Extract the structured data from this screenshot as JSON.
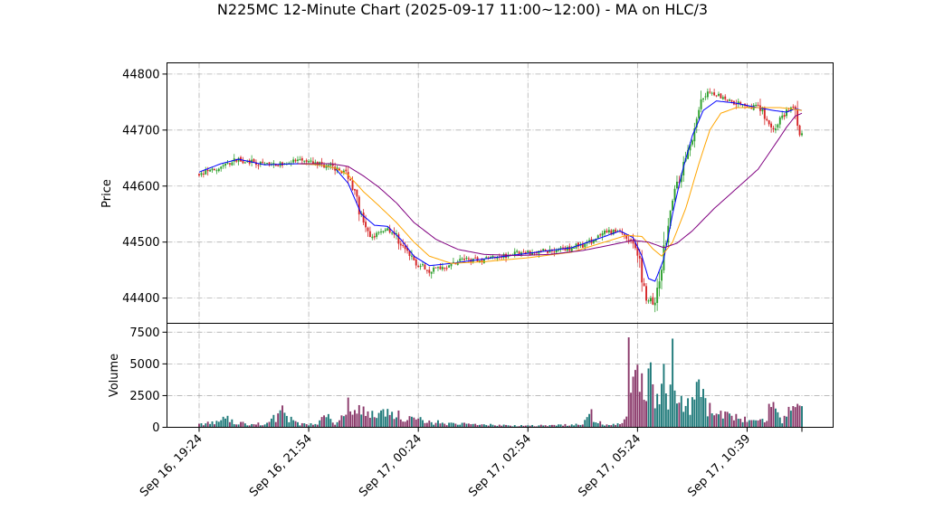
{
  "title": "N225MC 12-Minute Chart (2025-09-17 11:00~12:00) - MA on HLC/3",
  "colors": {
    "up": "#2ca02c",
    "down": "#d62728",
    "ma_short": "#0000ff",
    "ma_mid": "#ffa500",
    "ma_long": "#800080",
    "volume_up": "#1f7a7a",
    "volume_down": "#8b3a6b",
    "grid": "#b0b0b0"
  },
  "chart_data": [
    {
      "type": "candlestick",
      "ylabel": "Price",
      "ylim": [
        44355,
        44820
      ],
      "y_ticks": [
        44400,
        44500,
        44600,
        44700,
        44800
      ],
      "y_tick_labels": [
        "44400",
        "44500",
        "44600",
        "44700",
        "44800"
      ],
      "x_tick_labels": [
        "Sep 16, 19:24",
        "Sep 16, 21:54",
        "Sep 17, 00:24",
        "Sep 17, 02:54",
        "Sep 17, 05:24",
        "Sep 17, 10:39"
      ],
      "grid": true,
      "price_path": [
        [
          0,
          44620
        ],
        [
          8,
          44630
        ],
        [
          18,
          44648
        ],
        [
          25,
          44640
        ],
        [
          35,
          44638
        ],
        [
          45,
          44645
        ],
        [
          55,
          44640
        ],
        [
          62,
          44632
        ],
        [
          68,
          44622
        ],
        [
          72,
          44575
        ],
        [
          75,
          44530
        ],
        [
          78,
          44505
        ],
        [
          82,
          44520
        ],
        [
          86,
          44525
        ],
        [
          90,
          44510
        ],
        [
          95,
          44480
        ],
        [
          100,
          44460
        ],
        [
          105,
          44450
        ],
        [
          110,
          44455
        ],
        [
          115,
          44460
        ],
        [
          120,
          44470
        ],
        [
          128,
          44468
        ],
        [
          135,
          44475
        ],
        [
          145,
          44480
        ],
        [
          160,
          44485
        ],
        [
          170,
          44490
        ],
        [
          178,
          44500
        ],
        [
          185,
          44515
        ],
        [
          192,
          44520
        ],
        [
          198,
          44500
        ],
        [
          201,
          44460
        ],
        [
          204,
          44400
        ],
        [
          208,
          44390
        ],
        [
          211,
          44450
        ],
        [
          214,
          44540
        ],
        [
          218,
          44600
        ],
        [
          222,
          44650
        ],
        [
          226,
          44700
        ],
        [
          230,
          44760
        ],
        [
          234,
          44770
        ],
        [
          240,
          44755
        ],
        [
          250,
          44745
        ],
        [
          256,
          44740
        ],
        [
          262,
          44700
        ],
        [
          268,
          44735
        ],
        [
          272,
          44740
        ],
        [
          274,
          44695
        ],
        [
          275,
          44690
        ]
      ],
      "series_lines": [
        {
          "color_key": "ma_short",
          "points": [
            [
              0,
              44625
            ],
            [
              10,
              44640
            ],
            [
              18,
              44648
            ],
            [
              30,
              44638
            ],
            [
              45,
              44640
            ],
            [
              55,
              44638
            ],
            [
              62,
              44632
            ],
            [
              68,
              44605
            ],
            [
              74,
              44550
            ],
            [
              80,
              44530
            ],
            [
              86,
              44528
            ],
            [
              92,
              44505
            ],
            [
              98,
              44475
            ],
            [
              105,
              44458
            ],
            [
              115,
              44462
            ],
            [
              130,
              44470
            ],
            [
              150,
              44480
            ],
            [
              170,
              44490
            ],
            [
              185,
              44510
            ],
            [
              192,
              44520
            ],
            [
              198,
              44508
            ],
            [
              202,
              44475
            ],
            [
              205,
              44435
            ],
            [
              208,
              44430
            ],
            [
              212,
              44470
            ],
            [
              216,
              44550
            ],
            [
              220,
              44620
            ],
            [
              225,
              44690
            ],
            [
              230,
              44735
            ],
            [
              236,
              44752
            ],
            [
              245,
              44748
            ],
            [
              255,
              44740
            ],
            [
              262,
              44735
            ],
            [
              268,
              44732
            ],
            [
              272,
              44738
            ],
            [
              275,
              44735
            ]
          ]
        },
        {
          "color_key": "ma_mid",
          "points": [
            [
              45,
              44640
            ],
            [
              55,
              44638
            ],
            [
              62,
              44632
            ],
            [
              68,
              44620
            ],
            [
              75,
              44590
            ],
            [
              82,
              44565
            ],
            [
              90,
              44535
            ],
            [
              98,
              44500
            ],
            [
              105,
              44475
            ],
            [
              115,
              44462
            ],
            [
              130,
              44465
            ],
            [
              150,
              44472
            ],
            [
              170,
              44482
            ],
            [
              185,
              44500
            ],
            [
              195,
              44512
            ],
            [
              202,
              44510
            ],
            [
              207,
              44488
            ],
            [
              211,
              44475
            ],
            [
              216,
              44500
            ],
            [
              222,
              44560
            ],
            [
              228,
              44640
            ],
            [
              233,
              44700
            ],
            [
              238,
              44730
            ],
            [
              245,
              44740
            ],
            [
              255,
              44740
            ],
            [
              265,
              44740
            ],
            [
              270,
              44738
            ],
            [
              275,
              44735
            ]
          ]
        },
        {
          "color_key": "ma_long",
          "points": [
            [
              45,
              44640
            ],
            [
              60,
              44640
            ],
            [
              68,
              44635
            ],
            [
              75,
              44618
            ],
            [
              82,
              44598
            ],
            [
              90,
              44570
            ],
            [
              98,
              44535
            ],
            [
              108,
              44505
            ],
            [
              118,
              44487
            ],
            [
              130,
              44478
            ],
            [
              145,
              44476
            ],
            [
              160,
              44478
            ],
            [
              175,
              44485
            ],
            [
              188,
              44495
            ],
            [
              198,
              44503
            ],
            [
              205,
              44500
            ],
            [
              212,
              44490
            ],
            [
              218,
              44498
            ],
            [
              225,
              44520
            ],
            [
              235,
              44560
            ],
            [
              245,
              44595
            ],
            [
              255,
              44630
            ],
            [
              262,
              44670
            ],
            [
              268,
              44705
            ],
            [
              272,
              44725
            ],
            [
              275,
              44730
            ]
          ]
        }
      ]
    },
    {
      "type": "bar",
      "ylabel": "Volume",
      "ylim": [
        0,
        8200
      ],
      "y_ticks": [
        0,
        2500,
        5000,
        7500
      ],
      "y_tick_labels": [
        "0",
        "2500",
        "5000",
        "7500"
      ],
      "grid": true,
      "volume_profile": [
        [
          0,
          300
        ],
        [
          8,
          400
        ],
        [
          12,
          900
        ],
        [
          16,
          350
        ],
        [
          25,
          300
        ],
        [
          30,
          250
        ],
        [
          38,
          1300
        ],
        [
          45,
          300
        ],
        [
          50,
          250
        ],
        [
          55,
          500
        ],
        [
          58,
          1200
        ],
        [
          60,
          800
        ],
        [
          62,
          400
        ],
        [
          66,
          1100
        ],
        [
          67,
          1000
        ],
        [
          68,
          2800
        ],
        [
          70,
          2000
        ],
        [
          74,
          1400
        ],
        [
          80,
          1000
        ],
        [
          85,
          1500
        ],
        [
          90,
          1100
        ],
        [
          94,
          900
        ],
        [
          98,
          800
        ],
        [
          103,
          500
        ],
        [
          110,
          400
        ],
        [
          118,
          300
        ],
        [
          125,
          250
        ],
        [
          135,
          200
        ],
        [
          145,
          150
        ],
        [
          155,
          150
        ],
        [
          165,
          200
        ],
        [
          175,
          250
        ],
        [
          179,
          1100
        ],
        [
          182,
          400
        ],
        [
          187,
          200
        ],
        [
          193,
          300
        ],
        [
          195,
          1200
        ],
        [
          196,
          5500
        ],
        [
          198,
          3000
        ],
        [
          200,
          7900
        ],
        [
          201,
          4300
        ],
        [
          203,
          3800
        ],
        [
          205,
          5100
        ],
        [
          207,
          2900
        ],
        [
          210,
          2600
        ],
        [
          212,
          4200
        ],
        [
          214,
          2800
        ],
        [
          216,
          5300
        ],
        [
          218,
          2200
        ],
        [
          221,
          2700
        ],
        [
          224,
          1400
        ],
        [
          226,
          2200
        ],
        [
          228,
          3300
        ],
        [
          230,
          2500
        ],
        [
          232,
          1400
        ],
        [
          236,
          1600
        ],
        [
          242,
          900
        ],
        [
          248,
          700
        ],
        [
          254,
          500
        ],
        [
          258,
          500
        ],
        [
          262,
          2600
        ],
        [
          264,
          900
        ],
        [
          266,
          400
        ],
        [
          270,
          1800
        ],
        [
          272,
          1500
        ],
        [
          275,
          1500
        ]
      ]
    }
  ]
}
